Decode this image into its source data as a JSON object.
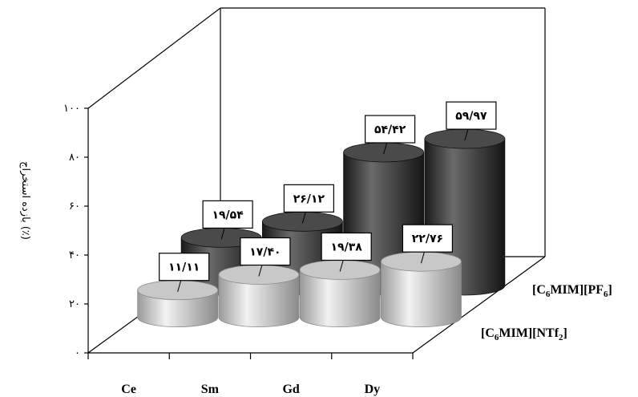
{
  "chart_data": {
    "type": "bar",
    "style": "3d-cylinder",
    "categories": [
      "Ce",
      "Sm",
      "Gd",
      "Dy"
    ],
    "ylabel": "بازده استخراج (٪)",
    "ylim": [
      0,
      100
    ],
    "y_ticks": [
      "۰",
      "۲۰",
      "۴۰",
      "۶۰",
      "۸۰",
      "۱۰۰"
    ],
    "series": [
      {
        "name": "[C6MIM][NTf2]",
        "values": [
          11.11,
          17.4,
          19.38,
          22.76
        ],
        "labels": [
          "۱۱/۱۱",
          "۱۷/۴۰",
          "۱۹/۳۸",
          "۲۲/۷۶"
        ],
        "color": "#b4b4b4"
      },
      {
        "name": "[C6MIM][PF6]",
        "values": [
          19.54,
          26.12,
          54.42,
          59.97
        ],
        "labels": [
          "۱۹/۵۴",
          "۲۶/۱۲",
          "۵۴/۴۲",
          "۵۹/۹۷"
        ],
        "color": "#333333"
      }
    ],
    "grid": false,
    "legend": "series labels at right"
  }
}
